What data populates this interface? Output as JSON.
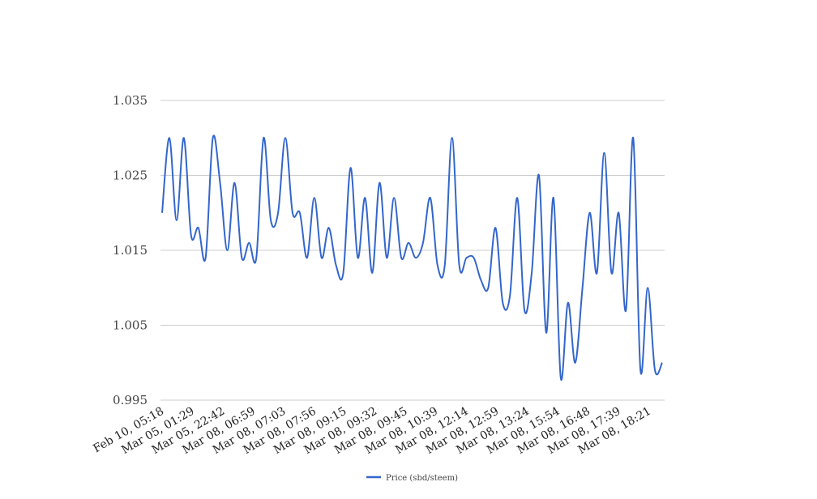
{
  "chart_data": {
    "type": "line",
    "title": "",
    "xlabel": "",
    "ylabel": "",
    "ylim": [
      0.995,
      1.035
    ],
    "y_ticks": [
      "1.035",
      "1.025",
      "1.015",
      "1.005",
      "0.995"
    ],
    "x_tick_labels": [
      "Feb 10, 05:18",
      "Mar 05, 01:29",
      "Mar 05, 22:42",
      "Mar 08, 06:59",
      "Mar 08, 07:03",
      "Mar 08, 07:56",
      "Mar 08, 09:15",
      "Mar 08, 09:32",
      "Mar 08, 09:45",
      "Mar 08, 10:39",
      "Mar 08, 12:14",
      "Mar 08, 12:59",
      "Mar 08, 13:24",
      "Mar 08, 15:54",
      "Mar 08, 16:48",
      "Mar 08, 17:39",
      "Mar 08, 18:21"
    ],
    "grid": true,
    "legend_position": "bottom",
    "color": "#3366cc",
    "series": [
      {
        "name": "Price (sbd/steem)",
        "values": [
          1.02,
          1.03,
          1.019,
          1.03,
          1.017,
          1.018,
          1.014,
          1.03,
          1.024,
          1.015,
          1.024,
          1.014,
          1.016,
          1.014,
          1.03,
          1.019,
          1.02,
          1.03,
          1.02,
          1.02,
          1.014,
          1.022,
          1.014,
          1.018,
          1.013,
          1.012,
          1.026,
          1.014,
          1.022,
          1.012,
          1.024,
          1.014,
          1.022,
          1.014,
          1.016,
          1.014,
          1.016,
          1.022,
          1.013,
          1.013,
          1.03,
          1.013,
          1.014,
          1.014,
          1.011,
          1.01,
          1.018,
          1.008,
          1.009,
          1.022,
          1.007,
          1.012,
          1.025,
          1.004,
          1.022,
          0.998,
          1.008,
          1.0,
          1.01,
          1.02,
          1.012,
          1.028,
          1.012,
          1.02,
          1.007,
          1.03,
          0.999,
          1.01,
          0.999,
          1.0
        ]
      }
    ]
  }
}
